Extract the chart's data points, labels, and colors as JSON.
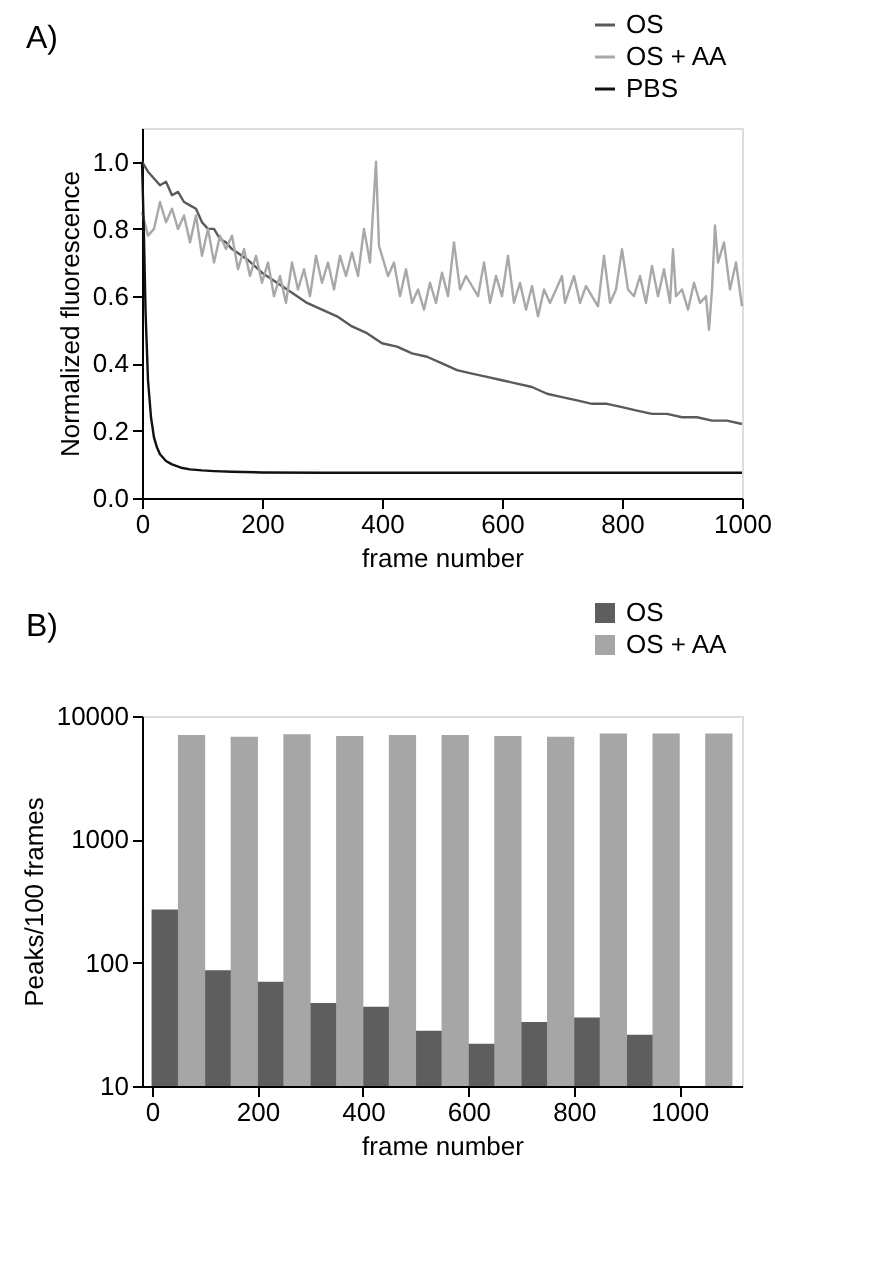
{
  "chart_data": [
    {
      "type": "line",
      "title": "A)",
      "xlabel": "frame number",
      "ylabel": "Normalized fluorescence",
      "xlim": [
        0,
        1000
      ],
      "xticks": [
        0,
        200,
        400,
        600,
        800,
        1000
      ],
      "ylim": [
        0,
        1.1
      ],
      "yticks": [
        {
          "value": 0,
          "label": "0.0"
        },
        0.2,
        0.4,
        0.6,
        0.8,
        {
          "value": 1,
          "label": "1.0"
        }
      ],
      "grid": false,
      "legend": "top right",
      "line_style": "solid",
      "marker": "none",
      "series": [
        {
          "name": "OS",
          "color": "#5a5a5a",
          "x": [
            0,
            10,
            20,
            30,
            40,
            50,
            60,
            70,
            80,
            90,
            100,
            110,
            120,
            130,
            140,
            150,
            175,
            200,
            225,
            250,
            275,
            300,
            325,
            350,
            375,
            400,
            425,
            450,
            475,
            500,
            525,
            550,
            575,
            600,
            625,
            650,
            675,
            700,
            725,
            750,
            775,
            800,
            825,
            850,
            875,
            900,
            925,
            950,
            975,
            1000
          ],
          "values": [
            1.0,
            0.97,
            0.95,
            0.93,
            0.94,
            0.9,
            0.91,
            0.88,
            0.87,
            0.86,
            0.82,
            0.8,
            0.8,
            0.77,
            0.76,
            0.74,
            0.71,
            0.67,
            0.64,
            0.61,
            0.58,
            0.56,
            0.54,
            0.51,
            0.49,
            0.46,
            0.45,
            0.43,
            0.42,
            0.4,
            0.38,
            0.37,
            0.36,
            0.35,
            0.34,
            0.33,
            0.31,
            0.3,
            0.29,
            0.28,
            0.28,
            0.27,
            0.26,
            0.25,
            0.25,
            0.24,
            0.24,
            0.23,
            0.23,
            0.22
          ]
        },
        {
          "name": "OS + AA",
          "color": "#a8a8a8",
          "x": [
            0,
            10,
            20,
            30,
            40,
            50,
            60,
            70,
            80,
            90,
            100,
            110,
            120,
            130,
            140,
            150,
            160,
            170,
            180,
            190,
            200,
            210,
            220,
            230,
            240,
            250,
            260,
            270,
            280,
            290,
            300,
            310,
            320,
            330,
            340,
            350,
            360,
            370,
            380,
            390,
            395,
            400,
            410,
            420,
            430,
            440,
            450,
            460,
            470,
            480,
            490,
            500,
            510,
            520,
            530,
            540,
            560,
            570,
            580,
            590,
            600,
            610,
            620,
            630,
            640,
            650,
            660,
            670,
            680,
            700,
            705,
            720,
            730,
            740,
            760,
            770,
            780,
            790,
            800,
            810,
            820,
            830,
            840,
            850,
            860,
            870,
            880,
            885,
            890,
            900,
            910,
            920,
            930,
            940,
            945,
            950,
            955,
            960,
            970,
            980,
            990,
            1000
          ],
          "values": [
            0.85,
            0.78,
            0.8,
            0.88,
            0.82,
            0.86,
            0.8,
            0.84,
            0.76,
            0.84,
            0.72,
            0.8,
            0.7,
            0.78,
            0.74,
            0.78,
            0.68,
            0.74,
            0.66,
            0.72,
            0.64,
            0.7,
            0.6,
            0.66,
            0.58,
            0.7,
            0.62,
            0.68,
            0.6,
            0.72,
            0.64,
            0.7,
            0.62,
            0.72,
            0.66,
            0.73,
            0.66,
            0.8,
            0.7,
            1.0,
            0.75,
            0.72,
            0.66,
            0.7,
            0.6,
            0.68,
            0.58,
            0.62,
            0.56,
            0.64,
            0.58,
            0.67,
            0.6,
            0.76,
            0.62,
            0.66,
            0.6,
            0.7,
            0.58,
            0.66,
            0.6,
            0.72,
            0.58,
            0.64,
            0.56,
            0.63,
            0.54,
            0.62,
            0.58,
            0.66,
            0.58,
            0.66,
            0.58,
            0.63,
            0.57,
            0.72,
            0.58,
            0.62,
            0.74,
            0.62,
            0.6,
            0.66,
            0.58,
            0.69,
            0.6,
            0.68,
            0.58,
            0.74,
            0.6,
            0.62,
            0.56,
            0.64,
            0.58,
            0.6,
            0.5,
            0.62,
            0.81,
            0.7,
            0.76,
            0.62,
            0.7,
            0.57
          ]
        },
        {
          "name": "PBS",
          "color": "#111111",
          "x": [
            0,
            3,
            6,
            10,
            15,
            20,
            25,
            30,
            40,
            50,
            65,
            80,
            100,
            120,
            150,
            200,
            300,
            400,
            500,
            600,
            700,
            800,
            900,
            1000
          ],
          "values": [
            1.0,
            0.8,
            0.55,
            0.35,
            0.24,
            0.18,
            0.15,
            0.13,
            0.11,
            0.1,
            0.09,
            0.085,
            0.082,
            0.08,
            0.078,
            0.076,
            0.075,
            0.075,
            0.075,
            0.075,
            0.075,
            0.075,
            0.075,
            0.075
          ]
        }
      ]
    },
    {
      "type": "bar",
      "title": "B)",
      "xlabel": "frame number",
      "ylabel": "Peaks/100 frames",
      "log": "y",
      "xlim": [
        0,
        1100
      ],
      "xticks": [
        0,
        200,
        400,
        600,
        800,
        1000
      ],
      "ylim": [
        10,
        10000
      ],
      "yticks": [
        10,
        100,
        1000,
        10000
      ],
      "grid": false,
      "legend": "top right",
      "series": [
        {
          "name": "OS",
          "color": "#5e5e5e",
          "x": [
            25,
            125,
            225,
            325,
            425,
            525,
            625,
            725,
            825,
            925
          ],
          "values": [
            270,
            87,
            70,
            47,
            44,
            28,
            22,
            33,
            36,
            26
          ]
        },
        {
          "name": "OS + AA",
          "color": "#a6a6a6",
          "x": [
            75,
            175,
            275,
            375,
            475,
            575,
            675,
            775,
            875,
            975,
            1075
          ],
          "values": [
            7000,
            6800,
            7100,
            6900,
            7000,
            7000,
            6900,
            6800,
            7200,
            7200,
            7200
          ]
        }
      ]
    }
  ]
}
